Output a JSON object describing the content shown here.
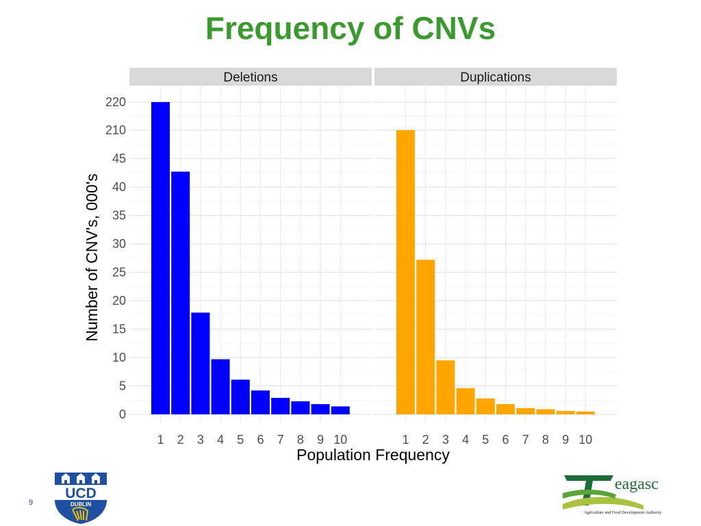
{
  "slide": {
    "title": "Frequency of CNVs",
    "page_number": "9"
  },
  "logos": {
    "ucd": {
      "main": "UCD",
      "sub": "DUBLIN"
    },
    "teagasc": {
      "wordmark": "eagasc",
      "tagline": "Agriculture and Food Development Authority"
    }
  },
  "colors": {
    "title": "#3a9a2e",
    "deletions": "#0000ff",
    "duplications": "#ffa500",
    "panel_header_bg": "#d9d9d9",
    "grid": "#e6e6e6"
  },
  "chart_data": {
    "type": "bar",
    "facets": [
      "Deletions",
      "Duplications"
    ],
    "categories": [
      "1",
      "2",
      "3",
      "4",
      "5",
      "6",
      "7",
      "8",
      "9",
      "10"
    ],
    "xlabel": "Population Frequency",
    "ylabel": "Number of CNV's, 000's",
    "y_ticks": [
      "0",
      "5",
      "10",
      "15",
      "20",
      "25",
      "30",
      "35",
      "40",
      "45",
      "210",
      "220"
    ],
    "y_axis_break": "axis is broken between 45 and 210",
    "ylim": [
      0,
      220
    ],
    "grid": true,
    "series": [
      {
        "name": "Deletions",
        "color": "#0000ff",
        "values": [
          220,
          42.7,
          17.9,
          9.7,
          6.1,
          4.2,
          2.9,
          2.3,
          1.8,
          1.4
        ]
      },
      {
        "name": "Duplications",
        "color": "#ffa500",
        "values": [
          210,
          27.2,
          9.5,
          4.6,
          2.8,
          1.8,
          1.1,
          0.9,
          0.6,
          0.5
        ]
      }
    ]
  }
}
